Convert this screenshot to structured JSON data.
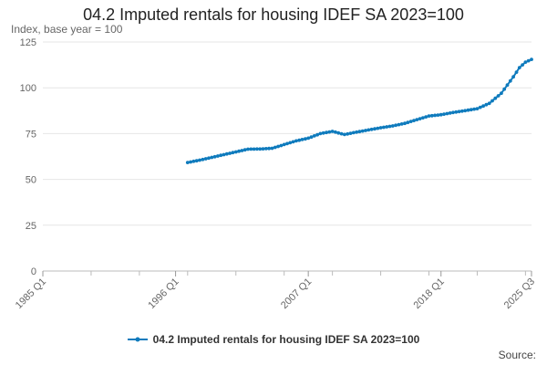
{
  "chart_data": {
    "type": "line",
    "title": "04.2 Imputed rentals for housing IDEF SA 2023=100",
    "ylabel": "Index, base year = 100",
    "xlabel": "",
    "ylim": [
      0,
      125
    ],
    "yticks": [
      0,
      25,
      50,
      75,
      100,
      125
    ],
    "x_range": [
      "1985 Q1",
      "2025 Q3"
    ],
    "xticks": [
      "1985 Q1",
      "1996 Q1",
      "2007 Q1",
      "2018 Q1",
      "2025 Q3"
    ],
    "grid": true,
    "legend_position": "bottom",
    "series": [
      {
        "name": "04.2 Imputed rentals for housing IDEF SA 2023=100",
        "color": "#0f7bbd",
        "points": [
          [
            "1997 Q1",
            59.2
          ],
          [
            "1998 Q1",
            60.5
          ],
          [
            "1999 Q1",
            62.0
          ],
          [
            "2000 Q1",
            63.5
          ],
          [
            "2001 Q1",
            65.0
          ],
          [
            "2002 Q1",
            66.5
          ],
          [
            "2003 Q1",
            66.6
          ],
          [
            "2004 Q1",
            67.0
          ],
          [
            "2005 Q1",
            69.0
          ],
          [
            "2006 Q1",
            71.0
          ],
          [
            "2007 Q1",
            72.5
          ],
          [
            "2008 Q1",
            75.0
          ],
          [
            "2009 Q1",
            76.2
          ],
          [
            "2010 Q1",
            74.5
          ],
          [
            "2011 Q1",
            75.8
          ],
          [
            "2012 Q1",
            77.0
          ],
          [
            "2013 Q1",
            78.2
          ],
          [
            "2014 Q1",
            79.2
          ],
          [
            "2015 Q1",
            80.6
          ],
          [
            "2016 Q1",
            82.6
          ],
          [
            "2017 Q1",
            84.6
          ],
          [
            "2018 Q1",
            85.3
          ],
          [
            "2019 Q1",
            86.5
          ],
          [
            "2020 Q1",
            87.5
          ],
          [
            "2021 Q1",
            88.6
          ],
          [
            "2022 Q1",
            91.5
          ],
          [
            "2023 Q1",
            97.0
          ],
          [
            "2024 Q1",
            106.0
          ],
          [
            "2024 Q3",
            111.0
          ],
          [
            "2025 Q1",
            114.0
          ],
          [
            "2025 Q3",
            115.5
          ]
        ]
      }
    ]
  },
  "legend": {
    "label": "04.2 Imputed rentals for housing IDEF SA 2023=100"
  },
  "footer": {
    "source": "Source:"
  }
}
